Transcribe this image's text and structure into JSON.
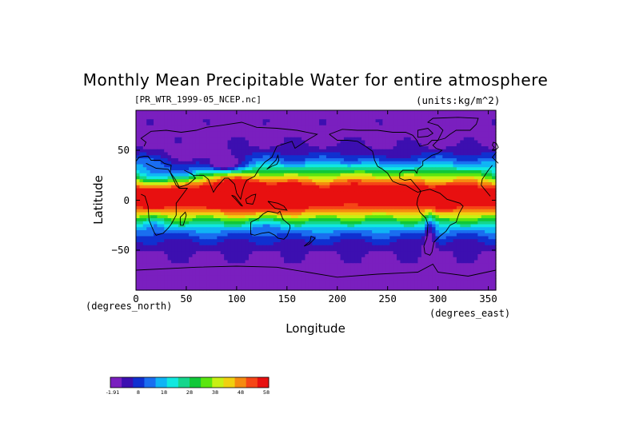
{
  "chart_data": {
    "type": "heatmap",
    "title": "Monthly Mean Precipitable Water for entire atmosphere",
    "file_label": "[PR_WTR_1999-05_NCEP.nc]",
    "units_label": "(units:kg/m^2)",
    "xlabel": "Longitude",
    "ylabel": "Latitude",
    "x_unit_label": "(degrees_east)",
    "y_unit_label": "(degrees_north)",
    "xlim": [
      0,
      357.5
    ],
    "ylim": [
      -90,
      90
    ],
    "x_ticks": [
      0,
      50,
      100,
      150,
      200,
      250,
      300,
      350
    ],
    "y_ticks": [
      50,
      0,
      -50
    ],
    "y_tick_labels": [
      "50",
      "0",
      "−50"
    ],
    "colorbar": {
      "tick_labels": [
        "-1.91",
        "8",
        "18",
        "28",
        "38",
        "48",
        "58"
      ],
      "range": [
        -1.91,
        58
      ],
      "colors": [
        "#7a1fbf",
        "#3c0fb0",
        "#1030d0",
        "#1a6ef0",
        "#10b4f5",
        "#10e8e0",
        "#14d68c",
        "#10c838",
        "#5ae610",
        "#c8f014",
        "#f0d010",
        "#f58a10",
        "#f54616",
        "#e81010"
      ]
    },
    "grid": false,
    "legend": "colorbar bottom-left"
  }
}
